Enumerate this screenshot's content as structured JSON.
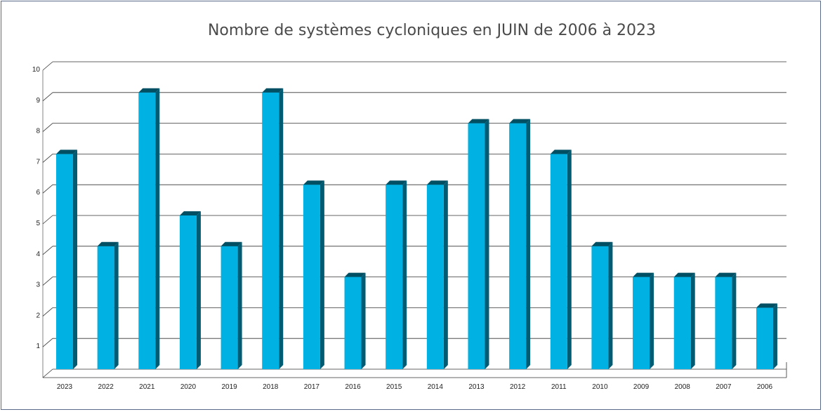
{
  "chart_data": {
    "type": "bar",
    "title": "Nombre de systèmes cycloniques en JUIN de 2006 à 2023",
    "categories": [
      "2023",
      "2022",
      "2021",
      "2020",
      "2019",
      "2018",
      "2017",
      "2016",
      "2015",
      "2014",
      "2013",
      "2012",
      "2011",
      "2010",
      "2009",
      "2008",
      "2007",
      "2006"
    ],
    "values": [
      7,
      4,
      9,
      5,
      4,
      9,
      6,
      3,
      6,
      6,
      8,
      8,
      7,
      4,
      3,
      3,
      3,
      2
    ],
    "yticks": [
      "1",
      "2",
      "3",
      "4",
      "5",
      "6",
      "7",
      "8",
      "9",
      "10"
    ],
    "ylim": [
      0,
      10
    ],
    "grid": true,
    "colors": {
      "bar_front": "#00b2e3",
      "bar_side": "#005b73",
      "bar_top": "#004f63",
      "grid": "#333333"
    }
  }
}
